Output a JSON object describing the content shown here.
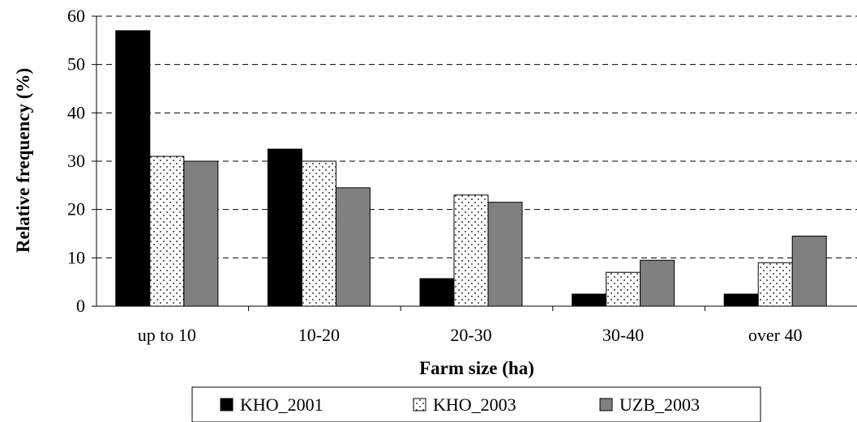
{
  "chart_data": {
    "type": "bar",
    "title": "",
    "xlabel": "Farm size (ha)",
    "ylabel": "Relative frequency (%)",
    "ylim": [
      0,
      60
    ],
    "yticks": [
      0,
      10,
      20,
      30,
      40,
      50,
      60
    ],
    "categories": [
      "up to 10",
      "10-20",
      "20-30",
      "30-40",
      "over 40"
    ],
    "series": [
      {
        "name": "KHO_2001",
        "values": [
          57,
          32.5,
          5.7,
          2.5,
          2.5
        ],
        "fill": "#000000",
        "pattern": "solid"
      },
      {
        "name": "KHO_2003",
        "values": [
          31,
          30,
          23,
          7,
          9
        ],
        "fill": "#ffffff",
        "pattern": "dots"
      },
      {
        "name": "UZB_2003",
        "values": [
          30,
          24.5,
          21.5,
          9.5,
          14.5
        ],
        "fill": "#808080",
        "pattern": "solid"
      }
    ],
    "grid": "horizontal dashed",
    "legend_position": "bottom"
  }
}
